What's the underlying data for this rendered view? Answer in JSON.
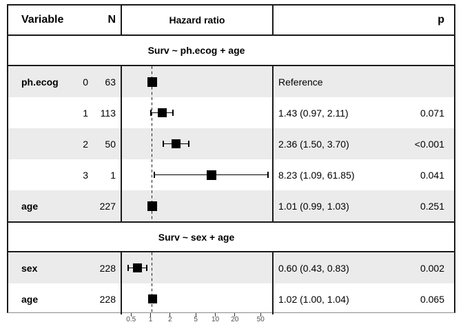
{
  "header": {
    "variable": "Variable",
    "n": "N",
    "hazard_ratio": "Hazard ratio",
    "p": "p"
  },
  "chart_data": {
    "type": "forest",
    "x_scale": "log10",
    "x_tick_labels": [
      "0.5",
      "1",
      "2",
      "5",
      "10",
      "20",
      "50"
    ],
    "x_tick_values": [
      0.5,
      1,
      2,
      5,
      10,
      20,
      50
    ],
    "x_range": [
      0.35,
      75
    ],
    "reference_line": 1,
    "sections": [
      {
        "title": "Surv ~ ph.ecog + age",
        "rows": [
          {
            "variable": "ph.ecog",
            "level": "0",
            "n": "63",
            "estimate": 1.0,
            "ci_low": null,
            "ci_high": null,
            "estimate_label": "Reference",
            "p_label": "",
            "marker_size": 14
          },
          {
            "variable": "",
            "level": "1",
            "n": "113",
            "estimate": 1.43,
            "ci_low": 0.97,
            "ci_high": 2.11,
            "estimate_label": "1.43 (0.97, 2.11)",
            "p_label": "0.071",
            "marker_size": 13
          },
          {
            "variable": "",
            "level": "2",
            "n": "50",
            "estimate": 2.36,
            "ci_low": 1.5,
            "ci_high": 3.7,
            "estimate_label": "2.36 (1.50, 3.70)",
            "p_label": "<0.001",
            "marker_size": 13
          },
          {
            "variable": "",
            "level": "3",
            "n": "1",
            "estimate": 8.23,
            "ci_low": 1.09,
            "ci_high": 61.85,
            "estimate_label": "8.23 (1.09, 61.85)",
            "p_label": "0.041",
            "marker_size": 14
          },
          {
            "variable": "age",
            "level": "",
            "n": "227",
            "estimate": 1.01,
            "ci_low": 0.99,
            "ci_high": 1.03,
            "estimate_label": "1.01 (0.99, 1.03)",
            "p_label": "0.251",
            "marker_size": 14
          }
        ]
      },
      {
        "title": "Surv ~ sex + age",
        "rows": [
          {
            "variable": "sex",
            "level": "",
            "n": "228",
            "estimate": 0.6,
            "ci_low": 0.43,
            "ci_high": 0.83,
            "estimate_label": "0.60 (0.43, 0.83)",
            "p_label": "0.002",
            "marker_size": 13
          },
          {
            "variable": "age",
            "level": "",
            "n": "228",
            "estimate": 1.02,
            "ci_low": 1.0,
            "ci_high": 1.04,
            "estimate_label": "1.02 (1.00, 1.04)",
            "p_label": "0.065",
            "marker_size": 13
          }
        ]
      }
    ]
  },
  "colors": {
    "row_shade": "#ebebeb",
    "table_line": "#1a1a1a",
    "marker": "#000000",
    "axis_text": "#4d4d4d",
    "axis_line": "#8a8a8a"
  }
}
